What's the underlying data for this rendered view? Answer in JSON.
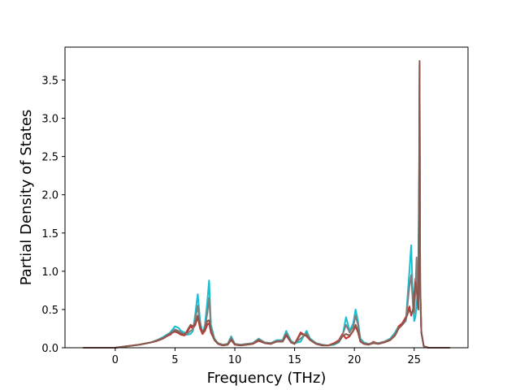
{
  "chart_data": {
    "type": "line",
    "title": "",
    "xlabel": "Frequency (THz)",
    "ylabel": "Partial Density of States",
    "xlim": [
      -4.2,
      29.5
    ],
    "ylim": [
      0.0,
      3.93
    ],
    "xticks": [
      0,
      5,
      10,
      15,
      20,
      25
    ],
    "yticks": [
      0.0,
      0.5,
      1.0,
      1.5,
      2.0,
      2.5,
      3.0,
      3.5
    ],
    "xtick_labels": [
      "0",
      "5",
      "10",
      "15",
      "20",
      "25"
    ],
    "ytick_labels": [
      "0.0",
      "0.5",
      "1.0",
      "1.5",
      "2.0",
      "2.5",
      "3.0",
      "3.5"
    ],
    "grid": false,
    "legend": "none",
    "series": [
      {
        "color": "#17becf",
        "x": [
          -2.7,
          0,
          1,
          2,
          3,
          3.5,
          4,
          4.3,
          4.6,
          4.8,
          5.0,
          5.3,
          5.5,
          5.8,
          6.0,
          6.3,
          6.5,
          6.7,
          6.9,
          7.1,
          7.3,
          7.5,
          7.7,
          7.85,
          8.0,
          8.3,
          8.6,
          9.0,
          9.4,
          9.7,
          10.0,
          10.5,
          11.0,
          11.5,
          12.0,
          12.5,
          13.0,
          13.5,
          14.0,
          14.3,
          14.7,
          15.0,
          15.5,
          16.0,
          16.3,
          16.8,
          17.3,
          17.8,
          18.3,
          18.7,
          19.0,
          19.3,
          19.6,
          19.9,
          20.1,
          20.3,
          20.5,
          20.8,
          21.2,
          21.6,
          22.0,
          22.5,
          23.0,
          23.4,
          23.7,
          24.0,
          24.3,
          24.6,
          24.75,
          24.9,
          25.0,
          25.1,
          25.2,
          25.3,
          25.35,
          25.4,
          25.45,
          25.5,
          25.6,
          25.8,
          26.2,
          28.0
        ],
        "y": [
          0.0,
          0.0,
          0.02,
          0.04,
          0.07,
          0.1,
          0.14,
          0.17,
          0.2,
          0.24,
          0.28,
          0.26,
          0.22,
          0.2,
          0.17,
          0.18,
          0.22,
          0.45,
          0.7,
          0.35,
          0.18,
          0.3,
          0.6,
          0.88,
          0.3,
          0.12,
          0.06,
          0.04,
          0.05,
          0.15,
          0.05,
          0.04,
          0.05,
          0.06,
          0.12,
          0.07,
          0.06,
          0.1,
          0.1,
          0.22,
          0.09,
          0.06,
          0.08,
          0.22,
          0.12,
          0.06,
          0.04,
          0.03,
          0.04,
          0.07,
          0.15,
          0.4,
          0.22,
          0.32,
          0.5,
          0.35,
          0.12,
          0.07,
          0.05,
          0.06,
          0.06,
          0.08,
          0.12,
          0.2,
          0.28,
          0.3,
          0.35,
          1.0,
          1.34,
          0.6,
          0.35,
          0.4,
          0.55,
          0.75,
          1.2,
          2.0,
          2.6,
          0.7,
          0.2,
          0.02,
          0.0,
          0.0
        ]
      },
      {
        "color": "#d62728",
        "x": [
          -2.7,
          0,
          1,
          2,
          3,
          3.5,
          4,
          4.3,
          4.6,
          4.8,
          5.0,
          5.3,
          5.5,
          5.8,
          6.0,
          6.3,
          6.5,
          6.7,
          6.9,
          7.1,
          7.3,
          7.5,
          7.7,
          7.85,
          8.0,
          8.3,
          8.6,
          9.0,
          9.4,
          9.7,
          10.0,
          10.5,
          11.0,
          11.5,
          12.0,
          12.5,
          13.0,
          13.5,
          14.0,
          14.3,
          14.7,
          15.0,
          15.5,
          16.0,
          16.3,
          16.8,
          17.3,
          17.8,
          18.3,
          18.7,
          19.0,
          19.3,
          19.6,
          19.9,
          20.1,
          20.3,
          20.5,
          20.8,
          21.2,
          21.6,
          22.0,
          22.5,
          23.0,
          23.4,
          23.7,
          24.0,
          24.3,
          24.6,
          24.75,
          24.9,
          25.0,
          25.1,
          25.2,
          25.3,
          25.35,
          25.4,
          25.45,
          25.5,
          25.6,
          25.8,
          26.2,
          28.0
        ],
        "y": [
          0.0,
          0.0,
          0.02,
          0.04,
          0.07,
          0.09,
          0.12,
          0.15,
          0.17,
          0.2,
          0.21,
          0.19,
          0.17,
          0.16,
          0.2,
          0.28,
          0.25,
          0.3,
          0.4,
          0.25,
          0.18,
          0.22,
          0.3,
          0.32,
          0.2,
          0.1,
          0.05,
          0.03,
          0.04,
          0.1,
          0.04,
          0.03,
          0.04,
          0.05,
          0.09,
          0.06,
          0.05,
          0.08,
          0.08,
          0.16,
          0.07,
          0.05,
          0.2,
          0.15,
          0.1,
          0.05,
          0.03,
          0.03,
          0.06,
          0.1,
          0.18,
          0.12,
          0.15,
          0.22,
          0.28,
          0.2,
          0.08,
          0.05,
          0.04,
          0.08,
          0.05,
          0.07,
          0.1,
          0.16,
          0.28,
          0.32,
          0.4,
          0.54,
          0.42,
          0.5,
          0.7,
          0.9,
          0.8,
          0.6,
          0.5,
          1.2,
          3.7,
          0.8,
          0.2,
          0.02,
          0.0,
          0.0
        ]
      },
      {
        "color": "#7f7f7f",
        "x": [
          -2.7,
          0,
          1,
          2,
          3,
          3.5,
          4,
          4.3,
          4.6,
          4.8,
          5.0,
          5.3,
          5.5,
          5.8,
          6.0,
          6.3,
          6.5,
          6.7,
          6.9,
          7.1,
          7.3,
          7.5,
          7.7,
          7.85,
          8.0,
          8.3,
          8.6,
          9.0,
          9.4,
          9.7,
          10.0,
          10.5,
          11.0,
          11.5,
          12.0,
          12.5,
          13.0,
          13.5,
          14.0,
          14.3,
          14.7,
          15.0,
          15.5,
          16.0,
          16.3,
          16.8,
          17.3,
          17.8,
          18.3,
          18.7,
          19.0,
          19.3,
          19.6,
          19.9,
          20.1,
          20.3,
          20.5,
          20.8,
          21.2,
          21.6,
          22.0,
          22.5,
          23.0,
          23.4,
          23.7,
          24.0,
          24.3,
          24.6,
          24.75,
          24.9,
          25.0,
          25.1,
          25.2,
          25.3,
          25.35,
          25.4,
          25.45,
          25.5,
          25.6,
          25.8,
          26.2,
          28.0
        ],
        "y": [
          0.0,
          0.0,
          0.02,
          0.04,
          0.07,
          0.1,
          0.13,
          0.16,
          0.19,
          0.22,
          0.24,
          0.22,
          0.2,
          0.18,
          0.18,
          0.22,
          0.24,
          0.38,
          0.55,
          0.3,
          0.2,
          0.26,
          0.45,
          0.65,
          0.26,
          0.11,
          0.06,
          0.04,
          0.05,
          0.13,
          0.05,
          0.04,
          0.05,
          0.06,
          0.11,
          0.07,
          0.06,
          0.09,
          0.09,
          0.19,
          0.08,
          0.06,
          0.12,
          0.19,
          0.11,
          0.06,
          0.04,
          0.03,
          0.05,
          0.09,
          0.16,
          0.3,
          0.2,
          0.27,
          0.42,
          0.3,
          0.1,
          0.06,
          0.05,
          0.07,
          0.06,
          0.08,
          0.11,
          0.18,
          0.26,
          0.3,
          0.36,
          0.8,
          0.95,
          0.55,
          0.45,
          0.75,
          1.18,
          0.7,
          0.8,
          1.8,
          3.5,
          0.75,
          0.2,
          0.02,
          0.0,
          0.0
        ]
      },
      {
        "color": "#8c564b",
        "x": [
          -2.7,
          0,
          1,
          2,
          3,
          3.5,
          4,
          4.3,
          4.6,
          4.8,
          5.0,
          5.3,
          5.5,
          5.8,
          6.0,
          6.3,
          6.5,
          6.7,
          6.9,
          7.1,
          7.3,
          7.5,
          7.7,
          7.85,
          8.0,
          8.3,
          8.6,
          9.0,
          9.4,
          9.7,
          10.0,
          10.5,
          11.0,
          11.5,
          12.0,
          12.5,
          13.0,
          13.5,
          14.0,
          14.3,
          14.7,
          15.0,
          15.5,
          16.0,
          16.3,
          16.8,
          17.3,
          17.8,
          18.3,
          18.7,
          19.0,
          19.3,
          19.6,
          19.9,
          20.1,
          20.3,
          20.5,
          20.8,
          21.2,
          21.6,
          22.0,
          22.5,
          23.0,
          23.4,
          23.7,
          24.0,
          24.3,
          24.6,
          24.75,
          24.9,
          25.0,
          25.1,
          25.2,
          25.3,
          25.35,
          25.4,
          25.45,
          25.5,
          25.6,
          25.8,
          26.2,
          28.0
        ],
        "y": [
          0.0,
          0.0,
          0.02,
          0.04,
          0.07,
          0.09,
          0.12,
          0.15,
          0.18,
          0.2,
          0.22,
          0.2,
          0.18,
          0.17,
          0.22,
          0.3,
          0.28,
          0.32,
          0.42,
          0.28,
          0.2,
          0.24,
          0.35,
          0.36,
          0.22,
          0.1,
          0.05,
          0.03,
          0.04,
          0.11,
          0.04,
          0.03,
          0.04,
          0.05,
          0.1,
          0.06,
          0.05,
          0.08,
          0.08,
          0.17,
          0.07,
          0.05,
          0.18,
          0.16,
          0.1,
          0.05,
          0.03,
          0.03,
          0.05,
          0.08,
          0.15,
          0.18,
          0.16,
          0.22,
          0.3,
          0.22,
          0.08,
          0.05,
          0.04,
          0.06,
          0.05,
          0.07,
          0.1,
          0.16,
          0.25,
          0.3,
          0.38,
          0.5,
          0.45,
          0.48,
          0.65,
          0.85,
          0.78,
          0.55,
          0.5,
          1.5,
          3.75,
          0.85,
          0.2,
          0.02,
          0.0,
          0.0
        ]
      }
    ]
  }
}
